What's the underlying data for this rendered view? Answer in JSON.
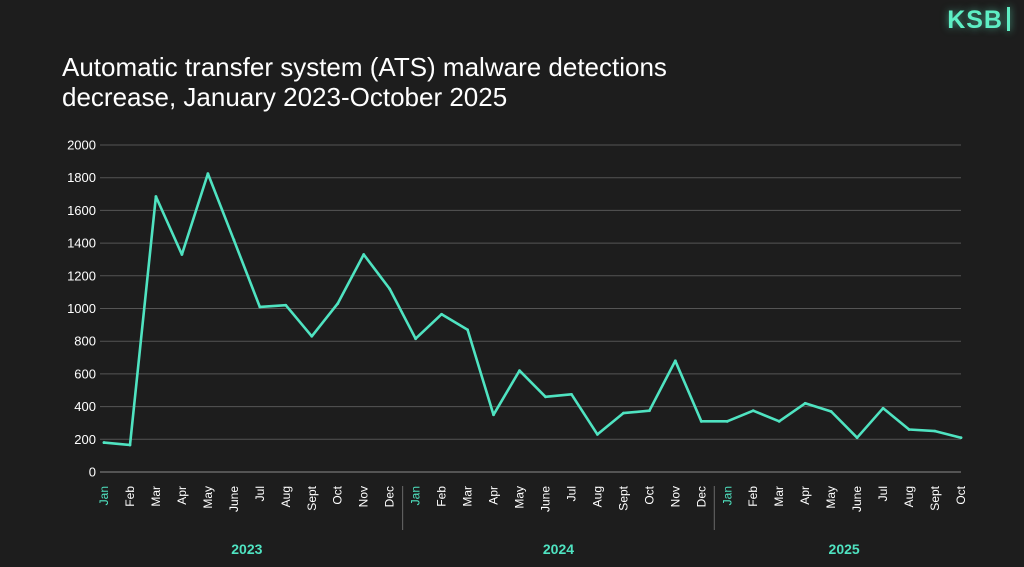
{
  "logo": {
    "text": "KSB"
  },
  "title_lines": [
    "Automatic transfer system (ATS) malware detections",
    "decrease, January 2023-October 2025"
  ],
  "colors": {
    "background": "#1d1d1d",
    "line": "#4fe3c1",
    "accent": "#4fe3c1",
    "grid": "#555555",
    "text": "#ffffff"
  },
  "chart_data": {
    "type": "line",
    "title": "Automatic transfer system (ATS) malware detections decrease, January 2023-October 2025",
    "xlabel": "",
    "ylabel": "",
    "ylim": [
      0,
      2000
    ],
    "yticks": [
      0,
      200,
      400,
      600,
      800,
      1000,
      1200,
      1400,
      1600,
      1800,
      2000
    ],
    "grid": true,
    "legend": "none",
    "categories": [
      "Jan",
      "Feb",
      "Mar",
      "Apr",
      "May",
      "June",
      "Jul",
      "Aug",
      "Sept",
      "Oct",
      "Nov",
      "Dec",
      "Jan",
      "Feb",
      "Mar",
      "Apr",
      "May",
      "June",
      "Jul",
      "Aug",
      "Sept",
      "Oct",
      "Nov",
      "Dec",
      "Jan",
      "Feb",
      "Mar",
      "Apr",
      "May",
      "June",
      "Jul",
      "Aug",
      "Sept",
      "Oct"
    ],
    "accent_categories": [
      0,
      12,
      24
    ],
    "year_groups": [
      {
        "label": "2023",
        "start": 0,
        "end": 11
      },
      {
        "label": "2024",
        "start": 12,
        "end": 23
      },
      {
        "label": "2025",
        "start": 24,
        "end": 33
      }
    ],
    "values": [
      180,
      165,
      1685,
      1330,
      1825,
      1420,
      1010,
      1020,
      830,
      1030,
      1330,
      1120,
      815,
      965,
      870,
      350,
      620,
      460,
      475,
      230,
      360,
      375,
      680,
      310,
      310,
      375,
      310,
      420,
      370,
      210,
      390,
      260,
      250,
      210
    ]
  }
}
